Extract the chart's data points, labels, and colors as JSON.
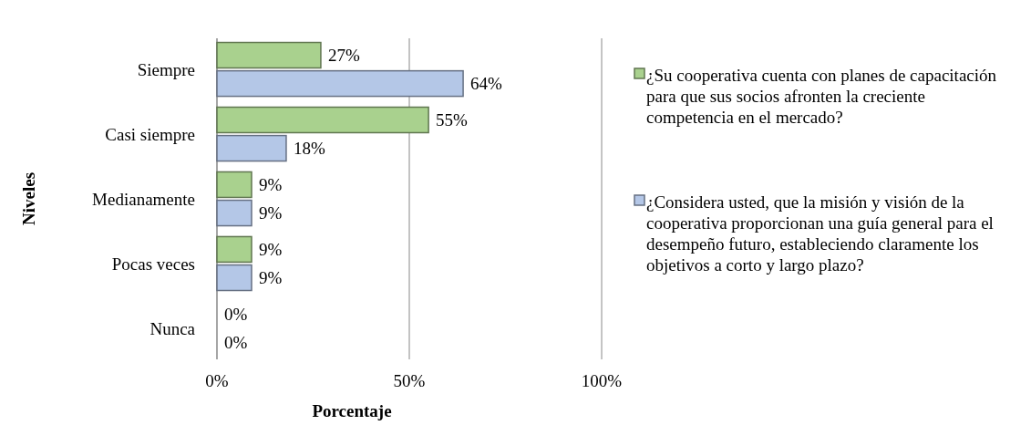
{
  "chart_data": {
    "type": "bar",
    "orientation": "horizontal",
    "xlabel": "Porcentaje",
    "ylabel": "Niveles",
    "categories": [
      "Siempre",
      "Casi siempre",
      "Medianamente",
      "Pocas veces",
      "Nunca"
    ],
    "series": [
      {
        "name": "¿Su cooperativa cuenta con planes de capacitación para que sus socios afronten la creciente competencia en el mercado?",
        "color": "#a9d18e",
        "values": [
          27,
          55,
          9,
          9,
          0
        ],
        "value_labels": [
          "27%",
          "55%",
          "9%",
          "9%",
          "0%"
        ]
      },
      {
        "name": "¿Considera usted, que la misión y visión de la cooperativa proporcionan una guía general para el desempeño futuro, estableciendo claramente los objetivos a corto y largo plazo?",
        "color": "#b4c7e7",
        "values": [
          64,
          18,
          9,
          9,
          0
        ],
        "value_labels": [
          "64%",
          "18%",
          "9%",
          "9%",
          "0%"
        ]
      }
    ],
    "xlim": [
      0,
      100
    ],
    "xticks": [
      {
        "value": 0,
        "label": "0%"
      },
      {
        "value": 50,
        "label": "50%"
      },
      {
        "value": 100,
        "label": "100%"
      }
    ],
    "grid": "x",
    "legend": "right"
  }
}
